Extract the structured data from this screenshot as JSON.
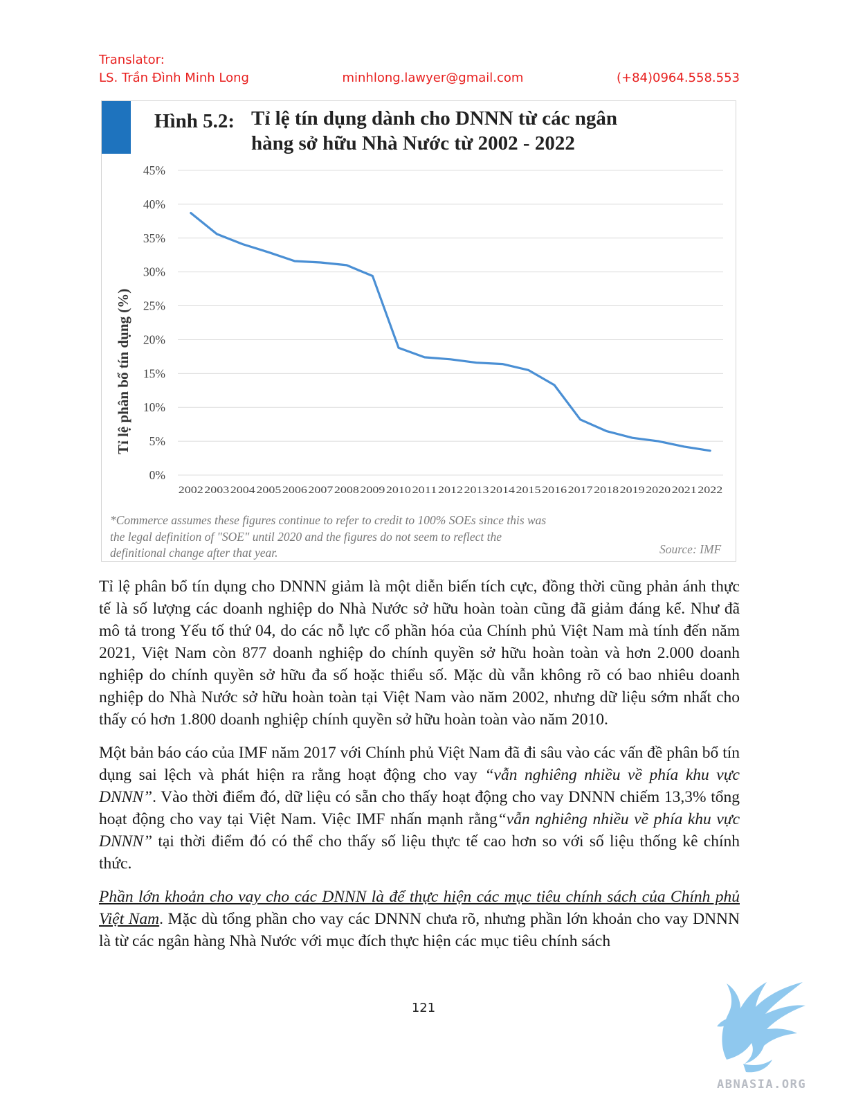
{
  "header": {
    "translator_label": "Translator:",
    "name": "LS. Trần Đình Minh Long",
    "email": "minhlong.lawyer@gmail.com",
    "phone": "(+84)0964.558.553"
  },
  "figure": {
    "title_prefix": "Hình 5.2:",
    "title_line1": "Tỉ lệ tín dụng dành cho DNNN từ các ngân",
    "title_line2": "hàng sở hữu Nhà Nước từ 2002 - 2022",
    "footnote_line1": "*Commerce assumes these figures continue to refer to credit to 100% SOEs since this was",
    "footnote_line2": "the legal definition of \"SOE\" until 2020 and the figures do not seem to reflect the",
    "footnote_line3": "definitional change after that year.",
    "source": "Source: IMF",
    "accent_color": "#1e73be",
    "line_color": "#4a8fd4"
  },
  "chart_data": {
    "type": "line",
    "ylabel": "Tỉ lệ phân bổ tín dụng (%)",
    "xlabel": "",
    "ylim": [
      0,
      45
    ],
    "y_ticks": [
      "0%",
      "5%",
      "10%",
      "15%",
      "20%",
      "25%",
      "30%",
      "35%",
      "40%",
      "45%"
    ],
    "grid": true,
    "x": [
      "2002",
      "2003",
      "2004",
      "2005",
      "2006",
      "2007",
      "2008",
      "2009",
      "2010",
      "2011",
      "2012",
      "2013",
      "2014",
      "2015",
      "2016",
      "2017",
      "2018",
      "2019",
      "2020",
      "2021",
      "2022"
    ],
    "values": [
      38.7,
      35.6,
      34.1,
      32.9,
      31.6,
      31.4,
      31.0,
      29.4,
      18.8,
      17.4,
      17.1,
      16.6,
      16.4,
      15.5,
      13.3,
      8.2,
      6.5,
      5.5,
      5.0,
      4.2,
      3.6
    ]
  },
  "body": {
    "p1": "Tỉ lệ phân bổ tín dụng cho DNNN giảm là một diễn biến tích cực, đồng thời cũng phản ánh thực tế là số lượng các doanh nghiệp do Nhà Nước sở hữu hoàn toàn cũng đã giảm đáng kể. Như đã mô tả trong Yếu tố thứ 04, do các nỗ lực cổ phần hóa của Chính phủ Việt Nam mà tính đến năm 2021, Việt Nam còn 877 doanh nghiệp do chính quyền sở hữu hoàn toàn và hơn 2.000 doanh nghiệp do chính quyền sở hữu đa số hoặc thiểu số. Mặc dù vẫn không rõ có bao nhiêu doanh nghiệp do Nhà Nước sở hữu hoàn toàn tại Việt Nam vào năm 2002, nhưng dữ liệu sớm nhất cho thấy có hơn 1.800 doanh nghiệp chính quyền sở hữu hoàn toàn vào năm 2010.",
    "p2_a": "Một bản báo cáo của IMF năm 2017 với Chính phủ Việt Nam đã đi sâu vào các vấn đề phân bổ tín dụng sai lệch và phát hiện ra rằng hoạt động cho vay ",
    "p2_b": "“vẫn nghiêng nhiều về phía khu vực DNNN”",
    "p2_c": ". Vào thời điểm đó, dữ liệu có sẵn cho thấy hoạt động cho vay DNNN chiếm 13,3% tổng hoạt động cho vay tại Việt Nam. Việc IMF nhấn mạnh rằng",
    "p2_d": "“vẫn nghiêng nhiều về phía khu vực DNNN”",
    "p2_e": " tại thời điểm đó có thể cho thấy số liệu thực tế cao hơn so với số liệu thống kê chính thức.",
    "p3_a": "Phần lớn khoản cho vay cho các DNNN là để thực hiện các mục tiêu chính sách của Chính phủ Việt Nam",
    "p3_b": ". Mặc dù tổng phần cho vay các DNNN chưa rõ, nhưng phần lớn khoản cho vay DNNN là từ các ngân hàng Nhà Nước với mục đích thực hiện các mục tiêu chính sách"
  },
  "footer": {
    "page_number": "121",
    "logo_text": "ABNASIA.ORG",
    "logo_color": "#8fc8ee"
  }
}
